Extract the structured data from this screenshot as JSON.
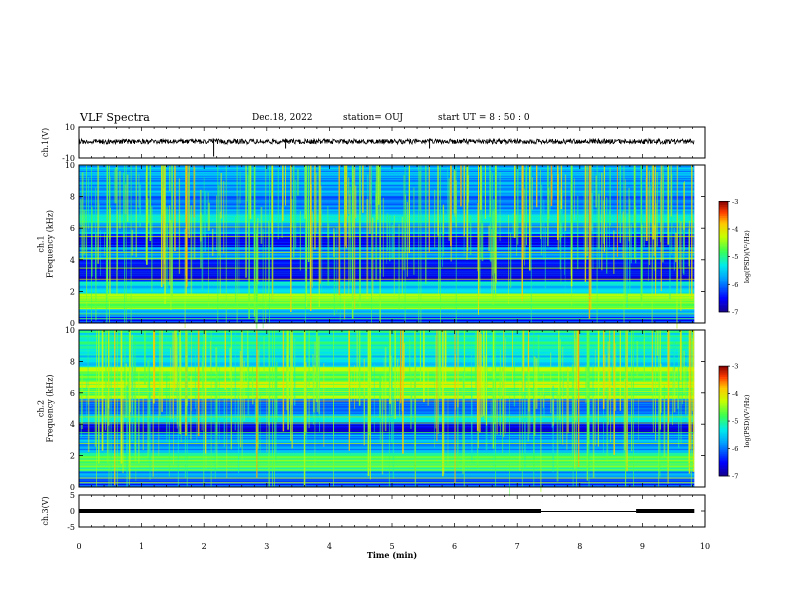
{
  "header": {
    "title": "VLF Spectra",
    "date": "Dec.18, 2022",
    "station": "station= OUJ",
    "start": "start  UT =   8  : 50 : 0"
  },
  "chart_data": {
    "type": "heatmap",
    "panels": [
      {
        "id": "ch1-waveform",
        "ylabel": "ch.1(V)",
        "ylim": [
          -10,
          10
        ],
        "yticks": [
          "10",
          "-10"
        ]
      },
      {
        "id": "ch1-spectrogram",
        "ylabel": "ch.1\nFrequency (kHz)",
        "ylim": [
          0,
          10
        ],
        "yticks": [
          "0",
          "2",
          "4",
          "6",
          "8",
          "10"
        ],
        "colorbar": {
          "label": "log(PSD)(V²/Hz)",
          "range": [
            -7,
            -3
          ],
          "ticks": [
            "-3",
            "-4",
            "-5",
            "-6",
            "-7"
          ]
        }
      },
      {
        "id": "ch2-spectrogram",
        "ylabel": "ch.2\nFrequency (kHz)",
        "ylim": [
          0,
          10
        ],
        "yticks": [
          "0",
          "2",
          "4",
          "6",
          "8",
          "10"
        ],
        "colorbar": {
          "label": "log(PSD)(V²/Hz)",
          "range": [
            -7,
            -3
          ],
          "ticks": [
            "-3",
            "-4",
            "-5",
            "-6",
            "-7"
          ]
        }
      },
      {
        "id": "ch3-waveform",
        "ylabel": "ch.3(V)",
        "ylim": [
          -5,
          5
        ],
        "yticks": [
          "5",
          "0",
          "-5"
        ]
      }
    ],
    "xaxis": {
      "label": "Time (min)",
      "xlim": [
        0,
        10
      ],
      "ticks": [
        "0",
        "1",
        "2",
        "3",
        "4",
        "5",
        "6",
        "7",
        "8",
        "9",
        "10"
      ],
      "data_end_min": 9.83
    }
  }
}
